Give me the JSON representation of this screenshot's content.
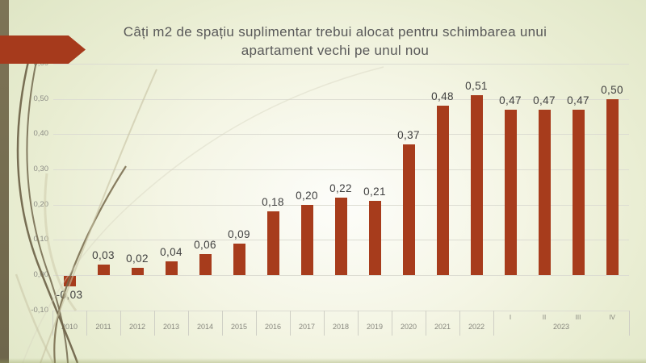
{
  "title": {
    "line1": "Câți m2 de spațiu suplimentar trebui alocat pentru schimbarea unui",
    "line2": "apartament vechi pe unul nou"
  },
  "chart_data": {
    "type": "bar",
    "title": "Câți m2 de spațiu suplimentar trebui alocat pentru schimbarea unui apartament vechi pe unul nou",
    "categories": [
      "2010",
      "2011",
      "2012",
      "2013",
      "2014",
      "2015",
      "2016",
      "2017",
      "2018",
      "2019",
      "2020",
      "2021",
      "2022",
      "I",
      "II",
      "III",
      "IV"
    ],
    "group": {
      "label": "2023",
      "members": [
        "I",
        "II",
        "III",
        "IV"
      ]
    },
    "values": [
      -0.03,
      0.03,
      0.02,
      0.04,
      0.06,
      0.09,
      0.18,
      0.2,
      0.22,
      0.21,
      0.37,
      0.48,
      0.51,
      0.47,
      0.47,
      0.47,
      0.5
    ],
    "value_labels": [
      "-0,03",
      "0,03",
      "0,02",
      "0,04",
      "0,06",
      "0,09",
      "0,18",
      "0,20",
      "0,22",
      "0,21",
      "0,37",
      "0,48",
      "0,51",
      "0,47",
      "0,47",
      "0,47",
      "0,50"
    ],
    "ylim": [
      -0.1,
      0.6
    ],
    "yticks": [
      -0.1,
      0.0,
      0.1,
      0.2,
      0.3,
      0.4,
      0.5,
      0.6
    ],
    "ytick_labels": [
      "-0,10",
      "0,00",
      "0,10",
      "0,20",
      "0,30",
      "0,40",
      "0,50",
      "0,60"
    ],
    "grid": true,
    "legend": "none",
    "xlabel": "",
    "ylabel": ""
  },
  "colors": {
    "bar": "#A73C1C",
    "arrow": "#A63A1C",
    "left_band": "#766D50",
    "title_text": "#595959",
    "value_label_text": "#3F3F3F",
    "axis_text": "#85857C",
    "ytick_text": "#8C8C85",
    "gridline": "#DCDCD2",
    "separator": "#CFCFC5"
  }
}
